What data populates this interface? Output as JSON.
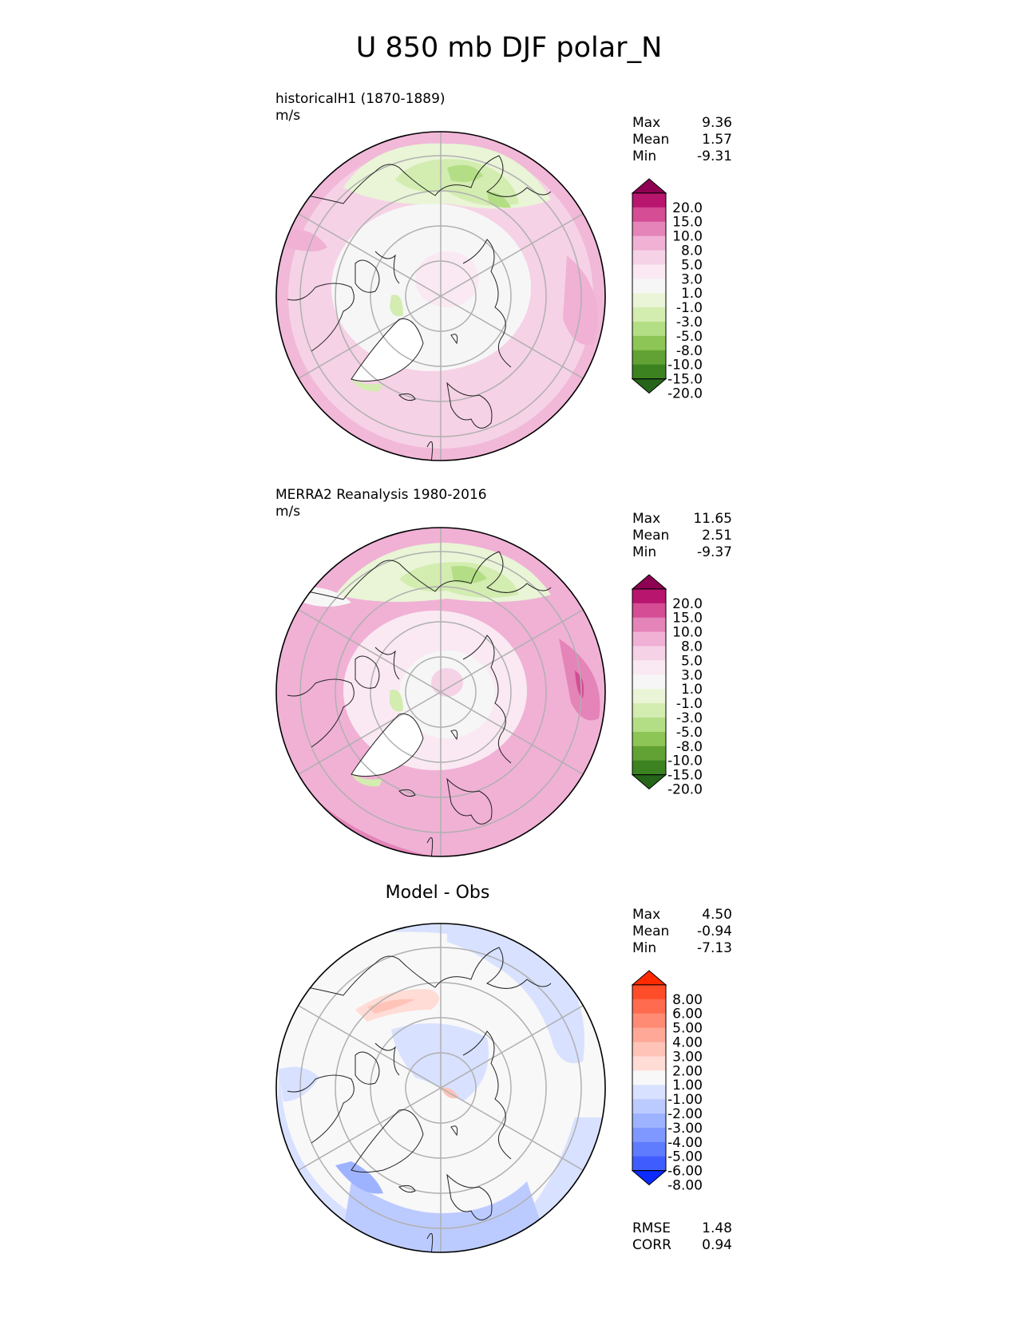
{
  "title": "U 850 mb DJF polar_N",
  "panels": [
    {
      "id": "model",
      "subtitle_line1": "historicalH1 (1870-1889)",
      "subtitle_line2": "m/s",
      "stats": {
        "max_label": "Max",
        "max": "9.36",
        "mean_label": "Mean",
        "mean": "1.57",
        "min_label": "Min",
        "min": "-9.31"
      }
    },
    {
      "id": "obs",
      "subtitle_line1": "MERRA2 Reanalysis 1980-2016",
      "subtitle_line2": "m/s",
      "stats": {
        "max_label": "Max",
        "max": "11.65",
        "mean_label": "Mean",
        "mean": "2.51",
        "min_label": "Min",
        "min": "-9.37"
      }
    },
    {
      "id": "diff",
      "title": "Model - Obs",
      "stats": {
        "max_label": "Max",
        "max": "4.50",
        "mean_label": "Mean",
        "mean": "-0.94",
        "min_label": "Min",
        "min": "-7.13"
      },
      "metrics": {
        "rmse_label": "RMSE",
        "rmse": "1.48",
        "corr_label": "CORR",
        "corr": "0.94"
      }
    }
  ],
  "colorbars": {
    "field": {
      "labels": [
        "20.0",
        "15.0",
        "10.0",
        "8.0",
        "5.0",
        "3.0",
        "1.0",
        "-1.0",
        "-3.0",
        "-5.0",
        "-8.0",
        "-10.0",
        "-15.0",
        "-20.0"
      ],
      "colors": [
        "#8e0152",
        "#b8156f",
        "#d44d95",
        "#e484b8",
        "#f0b1d5",
        "#f6d2e6",
        "#fae9f2",
        "#f6f6f6",
        "#e9f5d6",
        "#d3ecb0",
        "#b3de85",
        "#8dc556",
        "#62a234",
        "#3c8221",
        "#26651a"
      ]
    },
    "diff": {
      "labels": [
        "8.00",
        "6.00",
        "5.00",
        "4.00",
        "3.00",
        "2.00",
        "1.00",
        "-1.00",
        "-2.00",
        "-3.00",
        "-4.00",
        "-5.00",
        "-6.00",
        "-8.00"
      ],
      "colors": [
        "#ff2a00",
        "#ff4d2a",
        "#ff6b4f",
        "#ff8b74",
        "#ffa898",
        "#ffc3b8",
        "#ffdcd5",
        "#f8f8f8",
        "#d8e1ff",
        "#bccbff",
        "#9eb3ff",
        "#7f98ff",
        "#5f7cff",
        "#3f5dff",
        "#0b2bff"
      ]
    }
  }
}
